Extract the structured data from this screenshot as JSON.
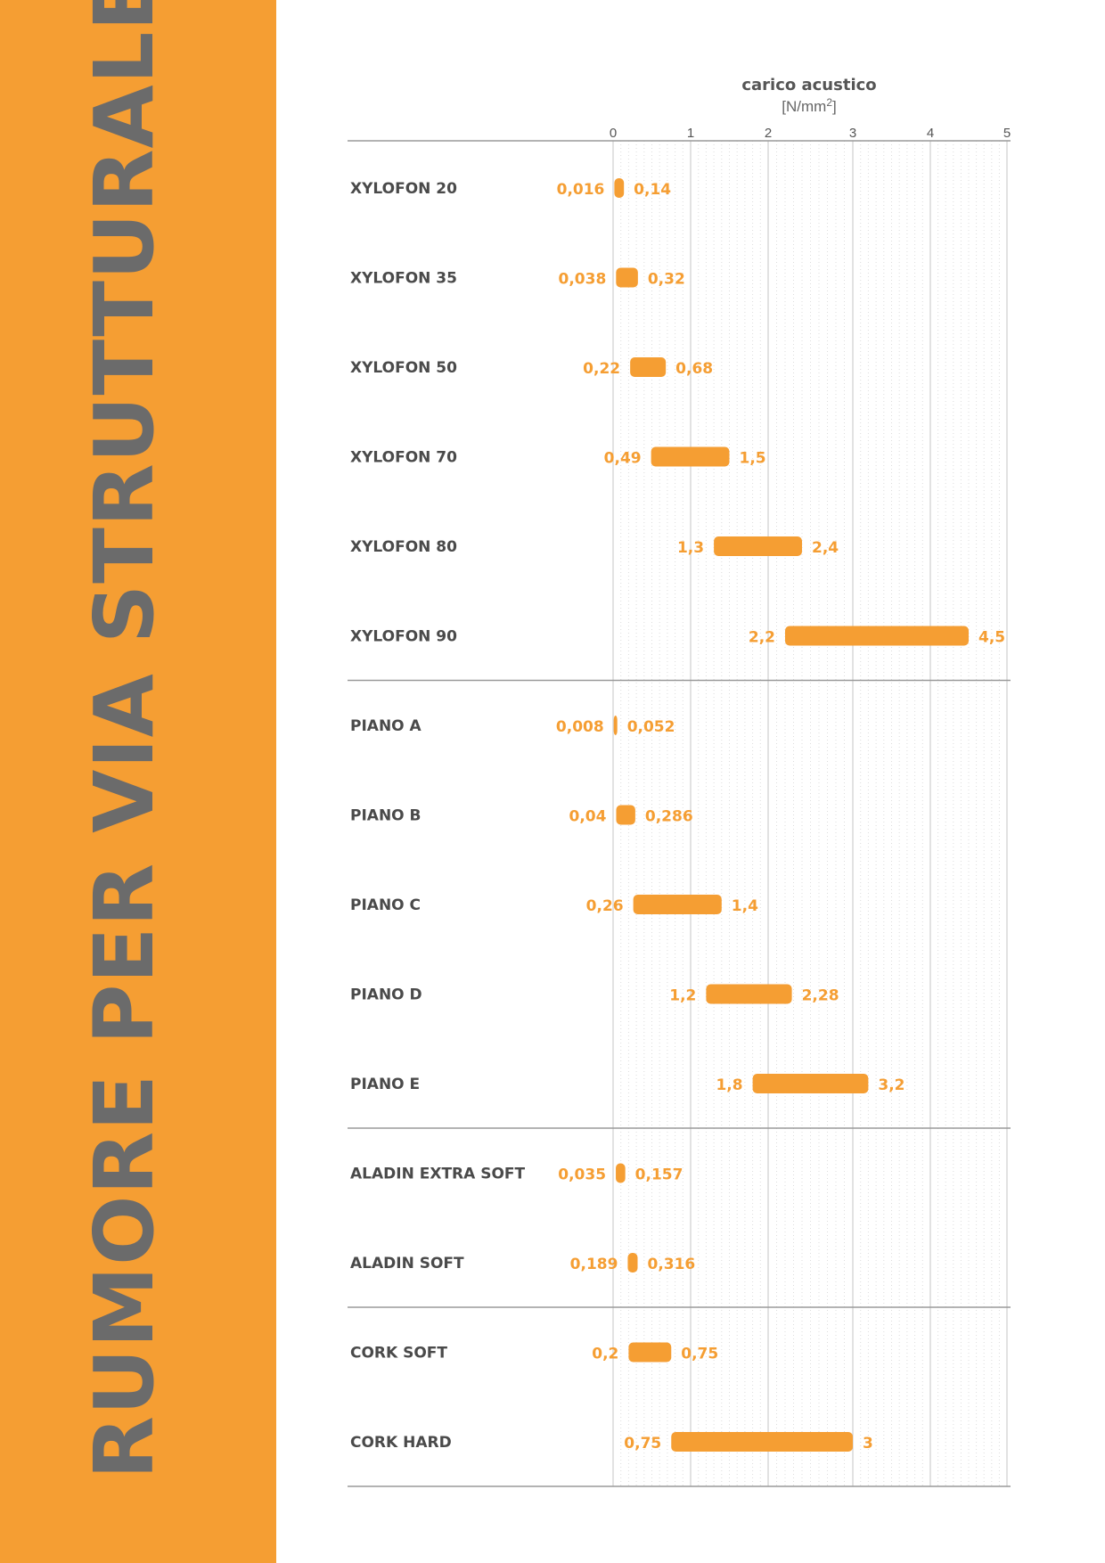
{
  "sidebar": {
    "title": "RUMORE PER VIA STRUTTURALE",
    "color": "#f59e33"
  },
  "chart_data": {
    "type": "range-bar",
    "xlabel": "carico acustico",
    "xunit_base": "[N/mm",
    "xunit_sup": "2",
    "xunit_end": "]",
    "xticks": [
      0,
      1,
      2,
      3,
      4,
      5
    ],
    "xlim": [
      0,
      5
    ],
    "grid": true,
    "bar_color": "#f59e33",
    "groups": [
      {
        "items": [
          {
            "name": "XYLOFON 20",
            "min": 0.016,
            "max": 0.14,
            "min_label": "0,016",
            "max_label": "0,14"
          },
          {
            "name": "XYLOFON 35",
            "min": 0.038,
            "max": 0.32,
            "min_label": "0,038",
            "max_label": "0,32"
          },
          {
            "name": "XYLOFON 50",
            "min": 0.22,
            "max": 0.68,
            "min_label": "0,22",
            "max_label": "0,68"
          },
          {
            "name": "XYLOFON 70",
            "min": 0.49,
            "max": 1.5,
            "min_label": "0,49",
            "max_label": "1,5"
          },
          {
            "name": "XYLOFON 80",
            "min": 1.3,
            "max": 2.4,
            "min_label": "1,3",
            "max_label": "2,4"
          },
          {
            "name": "XYLOFON 90",
            "min": 2.2,
            "max": 4.5,
            "min_label": "2,2",
            "max_label": "4,5"
          }
        ]
      },
      {
        "items": [
          {
            "name": "PIANO A",
            "min": 0.008,
            "max": 0.052,
            "min_label": "0,008",
            "max_label": "0,052"
          },
          {
            "name": "PIANO B",
            "min": 0.04,
            "max": 0.286,
            "min_label": "0,04",
            "max_label": "0,286"
          },
          {
            "name": "PIANO C",
            "min": 0.26,
            "max": 1.4,
            "min_label": "0,26",
            "max_label": "1,4"
          },
          {
            "name": "PIANO D",
            "min": 1.2,
            "max": 2.28,
            "min_label": "1,2",
            "max_label": "2,28"
          },
          {
            "name": "PIANO E",
            "min": 1.8,
            "max": 3.2,
            "min_label": "1,8",
            "max_label": "3,2"
          }
        ]
      },
      {
        "items": [
          {
            "name": "ALADIN EXTRA SOFT",
            "min": 0.035,
            "max": 0.157,
            "min_label": "0,035",
            "max_label": "0,157"
          },
          {
            "name": "ALADIN SOFT",
            "min": 0.189,
            "max": 0.316,
            "min_label": "0,189",
            "max_label": "0,316"
          }
        ]
      },
      {
        "items": [
          {
            "name": "CORK SOFT",
            "min": 0.2,
            "max": 0.75,
            "min_label": "0,2",
            "max_label": "0,75"
          },
          {
            "name": "CORK HARD",
            "min": 0.75,
            "max": 3,
            "min_label": "0,75",
            "max_label": "3"
          }
        ]
      }
    ]
  }
}
